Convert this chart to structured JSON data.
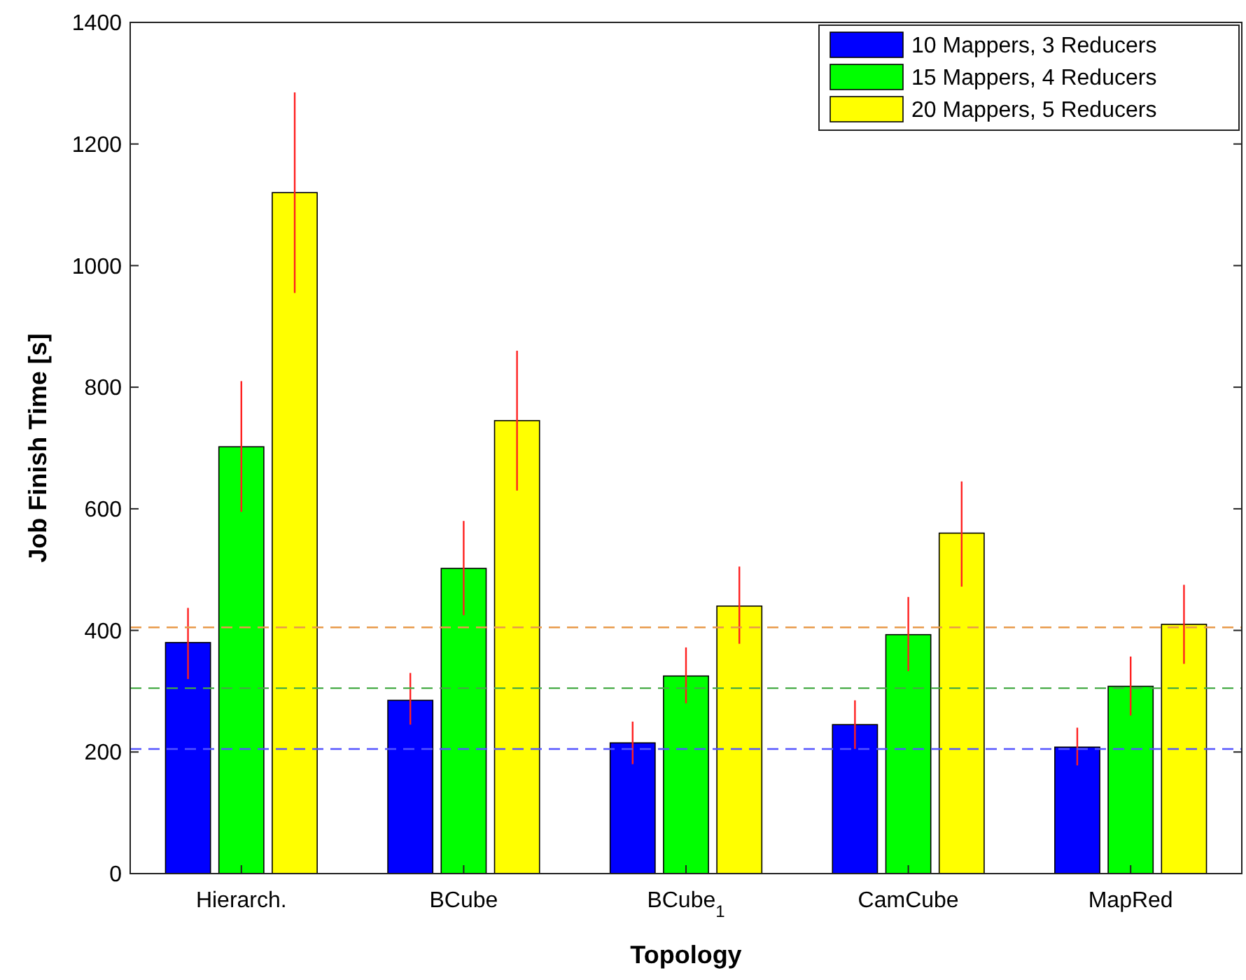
{
  "chart_data": {
    "type": "bar",
    "xlabel": "Topology",
    "ylabel": "Job Finish Time [s]",
    "categories": [
      "Hierarch.",
      "BCube",
      "BCube$_{1}$",
      "CamCube",
      "MapRed"
    ],
    "series": [
      {
        "name": "10 Mappers, 3 Reducers",
        "color": "#0000ff",
        "values": [
          380,
          285,
          215,
          245,
          208
        ],
        "errors": [
          [
            320,
            437
          ],
          [
            245,
            330
          ],
          [
            180,
            250
          ],
          [
            205,
            285
          ],
          [
            178,
            240
          ]
        ]
      },
      {
        "name": "15 Mappers, 4 Reducers",
        "color": "#00ff00",
        "values": [
          702,
          502,
          325,
          393,
          308
        ],
        "errors": [
          [
            595,
            810
          ],
          [
            425,
            580
          ],
          [
            280,
            372
          ],
          [
            333,
            455
          ],
          [
            260,
            357
          ]
        ]
      },
      {
        "name": "20 Mappers, 5 Reducers",
        "color": "#ffff00",
        "values": [
          1120,
          745,
          440,
          560,
          410
        ],
        "errors": [
          [
            955,
            1285
          ],
          [
            630,
            860
          ],
          [
            378,
            505
          ],
          [
            472,
            645
          ],
          [
            345,
            475
          ]
        ]
      }
    ],
    "ylim": [
      0,
      1400
    ],
    "yticks": [
      0,
      200,
      400,
      600,
      800,
      1000,
      1200,
      1400
    ],
    "ref_lines": [
      {
        "axis": "y",
        "value": 205,
        "color": "#5555ff",
        "line_style": "dashed"
      },
      {
        "axis": "y",
        "value": 305,
        "color": "#44aa44",
        "line_style": "dashed"
      },
      {
        "axis": "y",
        "value": 405,
        "color": "#e89a4a",
        "line_style": "dashed"
      }
    ],
    "grid": false,
    "legend": "top right"
  }
}
